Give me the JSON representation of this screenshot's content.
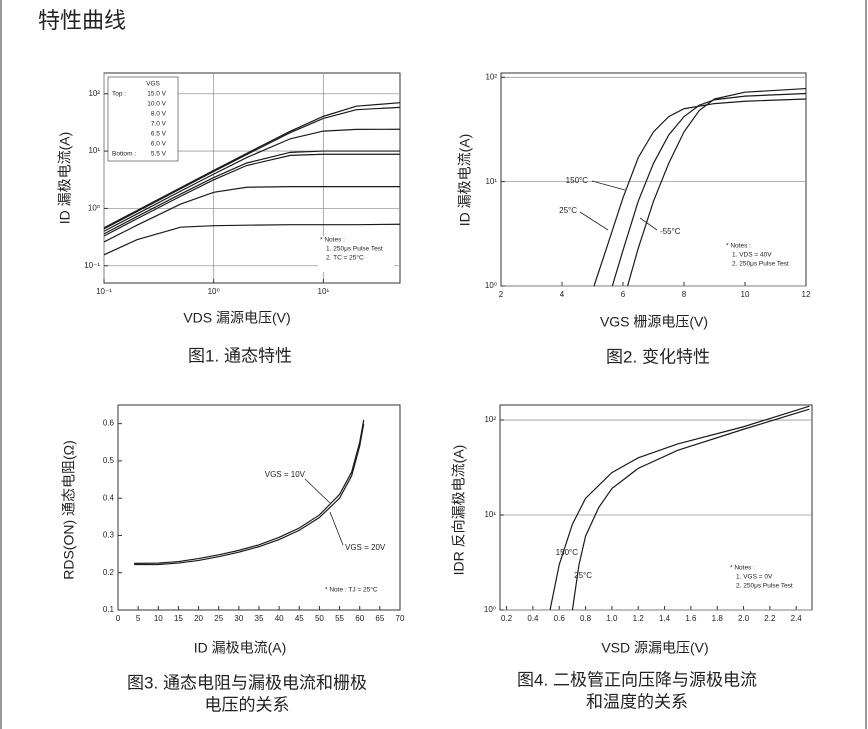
{
  "title": "特性曲线",
  "chart_data": [
    {
      "type": "line",
      "caption": [
        "图1. 通态特性"
      ],
      "xlabel": "VDS 漏源电压(V)",
      "ylabel": "ID 漏极电流(A)",
      "log_x": true,
      "log_y": true,
      "grid": "both",
      "color": "#1a1a1a",
      "xlim": [
        0.1,
        50
      ],
      "ylim": [
        0.05,
        230
      ],
      "xticks": [
        {
          "value": 0.1,
          "label": "10⁻¹"
        },
        {
          "value": 1,
          "label": "10⁰"
        },
        {
          "value": 10,
          "label": "10¹"
        }
      ],
      "yticks": [
        {
          "value": 0.1,
          "label": "10⁻¹"
        },
        {
          "value": 1,
          "label": "10⁰"
        },
        {
          "value": 10,
          "label": "10¹"
        },
        {
          "value": 100,
          "label": "10²"
        }
      ],
      "legend_title": "VGS",
      "legend_top": "Top :",
      "legend_bottom": "Bottom :",
      "notes": [
        "* Notes :",
        "1. 250μs Pulse Test",
        "2. TC = 25°C"
      ],
      "x": [
        0.1,
        0.2,
        0.5,
        1,
        2,
        5,
        10,
        20,
        50
      ],
      "series": [
        {
          "name": "15.0 V",
          "values": [
            0.46,
            0.92,
            2.3,
            4.6,
            9.1,
            22.2,
            40.3,
            60.6,
            69.8
          ]
        },
        {
          "name": "10.0 V",
          "values": [
            0.44,
            0.88,
            2.2,
            4.4,
            8.7,
            21.0,
            37.1,
            52.7,
            57.9
          ]
        },
        {
          "name": "8.0 V",
          "values": [
            0.4,
            0.8,
            2.0,
            3.96,
            7.7,
            16.4,
            22.3,
            23.9,
            24
          ]
        },
        {
          "name": "7.0 V",
          "values": [
            0.36,
            0.72,
            1.78,
            3.45,
            6.2,
            9.5,
            10,
            10,
            10
          ]
        },
        {
          "name": "6.5 V",
          "values": [
            0.33,
            0.66,
            1.63,
            3.15,
            5.6,
            8.4,
            8.8,
            8.8,
            8.8
          ]
        },
        {
          "name": "6.0 V",
          "values": [
            0.26,
            0.51,
            1.19,
            1.91,
            2.34,
            2.4,
            2.4,
            2.4,
            2.4
          ]
        },
        {
          "name": "5.5 V",
          "values": [
            0.155,
            0.285,
            0.47,
            0.5,
            0.51,
            0.52,
            0.52,
            0.52,
            0.53
          ]
        }
      ]
    },
    {
      "type": "line",
      "caption": [
        "图2. 变化特性"
      ],
      "xlabel": "VGS 栅源电压(V)",
      "ylabel": "ID 漏极电流(A)",
      "log_x": false,
      "log_y": true,
      "grid": "y",
      "color": "#1a1a1a",
      "xlim": [
        2,
        12
      ],
      "ylim": [
        1,
        110
      ],
      "xticks": [
        2,
        4,
        6,
        8,
        10,
        12
      ],
      "yticks": [
        {
          "value": 1,
          "label": "10⁰"
        },
        {
          "value": 10,
          "label": "10¹"
        },
        {
          "value": 100,
          "label": "10²"
        }
      ],
      "notes": [
        "* Notes :",
        "1. VDS = 40V",
        "2. 250μs Pulse Test"
      ],
      "series": [
        {
          "name": "150°C",
          "x": [
            5.05,
            5.5,
            6.0,
            6.5,
            7,
            7.5,
            8,
            9,
            10,
            12
          ],
          "values": [
            1,
            2.5,
            7,
            17,
            30,
            42,
            50,
            56,
            59,
            62
          ]
        },
        {
          "name": "25°C",
          "x": [
            5.65,
            6,
            6.5,
            7,
            7.5,
            8,
            8.5,
            9,
            10,
            12
          ],
          "values": [
            1,
            2.2,
            6.5,
            15,
            28,
            42,
            54,
            61,
            66,
            70
          ]
        },
        {
          "name": "-55°C",
          "x": [
            6.15,
            6.5,
            7,
            7.5,
            8,
            8.5,
            9,
            10,
            12
          ],
          "values": [
            1,
            2.3,
            6.5,
            15,
            30,
            48,
            62,
            72,
            78
          ]
        }
      ]
    },
    {
      "type": "line",
      "caption": [
        "图3. 通态电阻与漏极电流和栅极",
        "电压的关系"
      ],
      "xlabel": "ID 漏极电流(A)",
      "ylabel": "RDS(ON) 通态电阻(Ω)",
      "log_x": false,
      "log_y": false,
      "grid": "none",
      "color": "#1a1a1a",
      "xlim": [
        0,
        70
      ],
      "ylim": [
        0.1,
        0.65
      ],
      "xticks": [
        0,
        5,
        10,
        15,
        20,
        25,
        30,
        35,
        40,
        45,
        50,
        55,
        60,
        65,
        70
      ],
      "yticks": [
        0.1,
        0.2,
        0.3,
        0.4,
        0.5,
        0.6
      ],
      "notes": [
        "* Note : TJ = 25°C"
      ],
      "x": [
        4,
        10,
        15,
        20,
        25,
        30,
        35,
        40,
        45,
        50,
        55,
        58,
        60,
        61
      ],
      "series": [
        {
          "name": "VGS = 10V",
          "values": [
            0.225,
            0.226,
            0.23,
            0.238,
            0.248,
            0.26,
            0.275,
            0.295,
            0.32,
            0.355,
            0.41,
            0.47,
            0.55,
            0.61
          ]
        },
        {
          "name": "VGS = 20V",
          "values": [
            0.222,
            0.222,
            0.226,
            0.233,
            0.243,
            0.255,
            0.27,
            0.289,
            0.314,
            0.348,
            0.4,
            0.46,
            0.54,
            0.6
          ]
        }
      ]
    },
    {
      "type": "line",
      "caption": [
        "图4. 二极管正向压降与源极电流",
        "和温度的关系"
      ],
      "xlabel": "VSD 源漏电压(V)",
      "ylabel": "IDR 反向漏极电流(A)",
      "log_x": false,
      "log_y": true,
      "grid": "y",
      "color": "#1a1a1a",
      "xlim": [
        0.15,
        2.52
      ],
      "ylim": [
        1,
        144
      ],
      "xticks": [
        0.2,
        0.4,
        0.6,
        0.8,
        {
          "value": 1,
          "label": "1.0"
        },
        1.2,
        1.4,
        1.6,
        1.8,
        {
          "value": 2,
          "label": "2.0"
        },
        2.2,
        2.4
      ],
      "yticks": [
        {
          "value": 1,
          "label": "10⁰"
        },
        {
          "value": 10,
          "label": "10¹"
        },
        {
          "value": 100,
          "label": "10²"
        }
      ],
      "notes": [
        "* Notes :",
        "1. VGS = 0V",
        "2. 250μs Pulse Test"
      ],
      "series": [
        {
          "name": "150°C",
          "x": [
            0.53,
            0.6,
            0.7,
            0.8,
            1.0,
            1.2,
            1.5,
            2.0,
            2.5
          ],
          "values": [
            1,
            3,
            8,
            15,
            28,
            40,
            56,
            85,
            140
          ]
        },
        {
          "name": "25°C",
          "x": [
            0.7,
            0.75,
            0.8,
            0.9,
            1.0,
            1.2,
            1.5,
            2.0,
            2.5
          ],
          "values": [
            1,
            3,
            6,
            12,
            19,
            31,
            48,
            80,
            130
          ]
        }
      ]
    }
  ]
}
